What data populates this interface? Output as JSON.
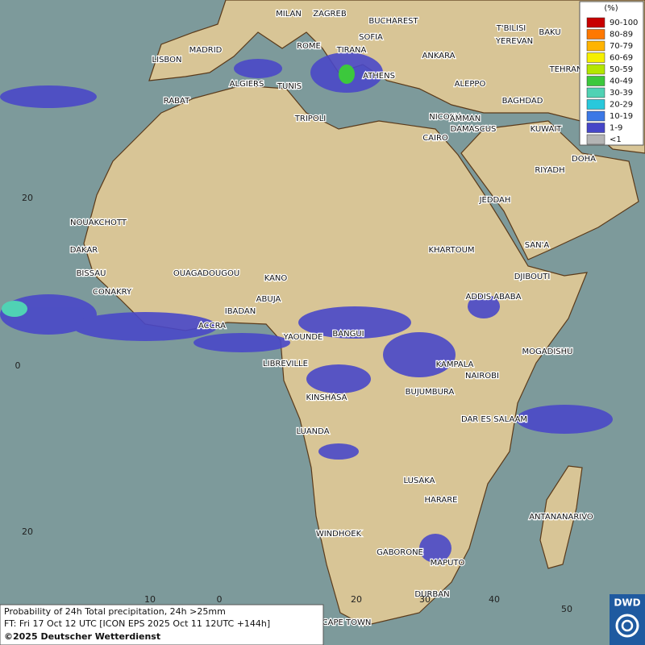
{
  "legend": {
    "title": "(%)",
    "items": [
      {
        "label": "90-100",
        "color": "#c80000"
      },
      {
        "label": "80-89",
        "color": "#ff7800"
      },
      {
        "label": "70-79",
        "color": "#ffb400"
      },
      {
        "label": "60-69",
        "color": "#f5f000"
      },
      {
        "label": "50-59",
        "color": "#b4e600"
      },
      {
        "label": "40-49",
        "color": "#3cc83c"
      },
      {
        "label": "30-39",
        "color": "#50d2b4"
      },
      {
        "label": "20-29",
        "color": "#28c8dc"
      },
      {
        "label": "10-19",
        "color": "#3c78e6"
      },
      {
        "label": "1-9",
        "color": "#4646c8"
      },
      {
        "label": "<1",
        "color": "#b4b4b4"
      }
    ]
  },
  "cities": [
    "MILAN",
    "ZAGREB",
    "BUCHAREST",
    "SOFIA",
    "T'BILISI",
    "BAKU",
    "YEREVAN",
    "MADRID",
    "ROME",
    "TIRANA",
    "ANKARA",
    "LISBON",
    "TEHRAN",
    "ALGIERS",
    "TUNIS",
    "ATHENS",
    "ALEPPO",
    "RABAT",
    "NICOSIA",
    "BAGHDAD",
    "AMMAN",
    "DAMASCUS",
    "TRIPOLI",
    "KUWAIT",
    "CAIRO",
    "DOHA",
    "RIYADH",
    "JEDDAH",
    "NOUAKCHOTT",
    "DAKAR",
    "KHARTOUM",
    "SAN'A",
    "BISSAU",
    "OUAGADOUGOU",
    "KANO",
    "DJIBOUTI",
    "CONAKRY",
    "ABUJA",
    "ADDIS ABABA",
    "IBADAN",
    "ACCRA",
    "YAOUNDE",
    "BANGUI",
    "MOGADISHU",
    "LIBREVILLE",
    "KAMPALA",
    "NAIROBI",
    "BUJUMBURA",
    "KINSHASA",
    "DAR ES SALAAM",
    "LUANDA",
    "LUSAKA",
    "HARARE",
    "ANTANANARIVO",
    "WINDHOEK",
    "GABORONE",
    "MAPUTO",
    "DURBAN",
    "CAPE TOWN"
  ],
  "graticule_labels": [
    "20",
    "0",
    "20",
    "10",
    "0",
    "20",
    "30",
    "40",
    "50"
  ],
  "footer": {
    "title": "Probability of 24h Total precipitation, 24h >25mm",
    "forecast": "FT: Fri 17 Oct 12 UTC [ICON EPS 2025 Oct 11 12UTC +144h]",
    "copyright": "©2025 Deutscher Wetterdienst"
  },
  "logo": "DWD"
}
